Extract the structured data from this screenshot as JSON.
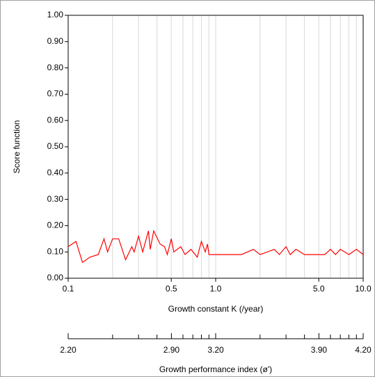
{
  "chart_data": {
    "type": "line",
    "xlabel": "Growth constant K (/year)",
    "ylabel": "Score function",
    "xscale": "log",
    "xlim": [
      0.1,
      10
    ],
    "xticks": [
      0.1,
      0.5,
      {
        "value": 1,
        "label": "1.0"
      },
      {
        "value": 5,
        "label": "5.0"
      },
      {
        "value": 10,
        "label": "10.0"
      }
    ],
    "xgrid": [
      0.2,
      0.3,
      0.4,
      0.6,
      0.7,
      0.8,
      0.9,
      2,
      3,
      4,
      6,
      7,
      8,
      9
    ],
    "ylim": [
      0,
      1
    ],
    "yticks": [
      {
        "value": 0,
        "label": "0.00"
      },
      {
        "value": 0.1,
        "label": "0.10"
      },
      {
        "value": 0.2,
        "label": "0.20"
      },
      {
        "value": 0.3,
        "label": "0.30"
      },
      {
        "value": 0.4,
        "label": "0.40"
      },
      {
        "value": 0.5,
        "label": "0.50"
      },
      {
        "value": 0.6,
        "label": "0.60"
      },
      {
        "value": 0.7,
        "label": "0.70"
      },
      {
        "value": 0.8,
        "label": "0.80"
      },
      {
        "value": 0.9,
        "label": "0.90"
      },
      {
        "value": 1,
        "label": "1.00"
      }
    ],
    "x2label": "Growth performance index (ø')",
    "x2lim": [
      2.2,
      4.2
    ],
    "x2ticks": [
      {
        "value": 2.2,
        "label": "2.20"
      },
      {
        "value": 2.9,
        "label": "2.90"
      },
      {
        "value": 3.2,
        "label": "3.20"
      },
      {
        "value": 3.9,
        "label": "3.90"
      },
      {
        "value": 4.2,
        "label": "4.20"
      }
    ],
    "grid": true,
    "color": "#ff0000",
    "x": [
      0.1,
      0.113,
      0.125,
      0.14,
      0.16,
      0.175,
      0.185,
      0.2,
      0.22,
      0.245,
      0.27,
      0.28,
      0.3,
      0.32,
      0.35,
      0.36,
      0.38,
      0.42,
      0.45,
      0.47,
      0.5,
      0.52,
      0.58,
      0.62,
      0.68,
      0.75,
      0.8,
      0.85,
      0.88,
      0.9,
      1.0,
      1.5,
      1.8,
      2.0,
      2.5,
      2.7,
      3.0,
      3.2,
      3.5,
      4.0,
      5.5,
      6.0,
      6.5,
      7.0,
      8.0,
      9.0,
      10.0
    ],
    "values": [
      0.12,
      0.14,
      0.06,
      0.08,
      0.09,
      0.15,
      0.1,
      0.15,
      0.15,
      0.07,
      0.12,
      0.1,
      0.16,
      0.1,
      0.18,
      0.11,
      0.18,
      0.13,
      0.12,
      0.09,
      0.15,
      0.1,
      0.12,
      0.09,
      0.11,
      0.08,
      0.14,
      0.1,
      0.13,
      0.09,
      0.09,
      0.09,
      0.11,
      0.09,
      0.11,
      0.09,
      0.12,
      0.09,
      0.11,
      0.09,
      0.09,
      0.11,
      0.09,
      0.11,
      0.09,
      0.11,
      0.09
    ]
  }
}
